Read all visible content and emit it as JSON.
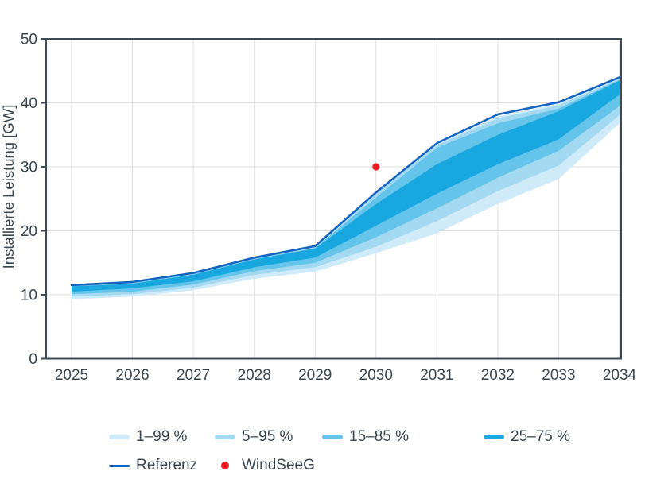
{
  "chart_data": {
    "type": "area",
    "title": "",
    "xlabel": "",
    "ylabel": "Installierte Leistung [GW]",
    "x": [
      2025,
      2026,
      2027,
      2028,
      2029,
      2030,
      2031,
      2032,
      2033,
      2034
    ],
    "ylim": [
      0,
      50
    ],
    "y_ticks": [
      0,
      10,
      20,
      30,
      40,
      50
    ],
    "grid": true,
    "legend_position": "bottom",
    "bands": [
      {
        "label": "1–99 %",
        "color": "#cfeaf8",
        "lower": [
          9.3,
          9.7,
          10.7,
          12.5,
          13.6,
          16.5,
          19.6,
          24.2,
          28.1,
          36.8
        ],
        "upper": [
          11.4,
          11.9,
          13.3,
          15.7,
          17.5,
          25.9,
          33.6,
          37.9,
          39.9,
          43.9
        ]
      },
      {
        "label": "5–95 %",
        "color": "#a3daf2",
        "lower": [
          9.7,
          10.1,
          11.1,
          13.1,
          14.3,
          17.5,
          21.5,
          26.2,
          30.2,
          38.1
        ],
        "upper": [
          11.4,
          11.9,
          13.3,
          15.7,
          17.4,
          25.8,
          33.4,
          37.6,
          39.6,
          43.8
        ]
      },
      {
        "label": "15–85 %",
        "color": "#64c4ea",
        "lower": [
          10.1,
          10.5,
          11.6,
          13.7,
          15.0,
          19.0,
          23.5,
          28.3,
          32.5,
          39.5
        ],
        "upper": [
          11.3,
          11.8,
          13.2,
          15.6,
          17.3,
          25.2,
          33.0,
          36.8,
          39.1,
          43.6
        ]
      },
      {
        "label": "25–75 %",
        "color": "#19a7e0",
        "lower": [
          10.5,
          11.0,
          12.1,
          14.3,
          15.8,
          20.8,
          25.8,
          30.4,
          34.3,
          41.3
        ],
        "upper": [
          11.3,
          11.7,
          13.1,
          15.5,
          17.2,
          24.2,
          30.4,
          35.0,
          38.7,
          43.5
        ]
      }
    ],
    "series": [
      {
        "name": "Referenz",
        "type": "line",
        "color": "#1565c0",
        "values": [
          11.5,
          12.0,
          13.4,
          15.8,
          17.6,
          26.0,
          33.7,
          38.2,
          40.1,
          44.0
        ]
      },
      {
        "name": "WindSeeG",
        "type": "point",
        "color": "#e91c23",
        "x": 2030,
        "y": 30
      }
    ],
    "axis_color": "#3d4a55",
    "gridline_color": "#dfdfdf",
    "tick_label_color": "#3b4751"
  }
}
